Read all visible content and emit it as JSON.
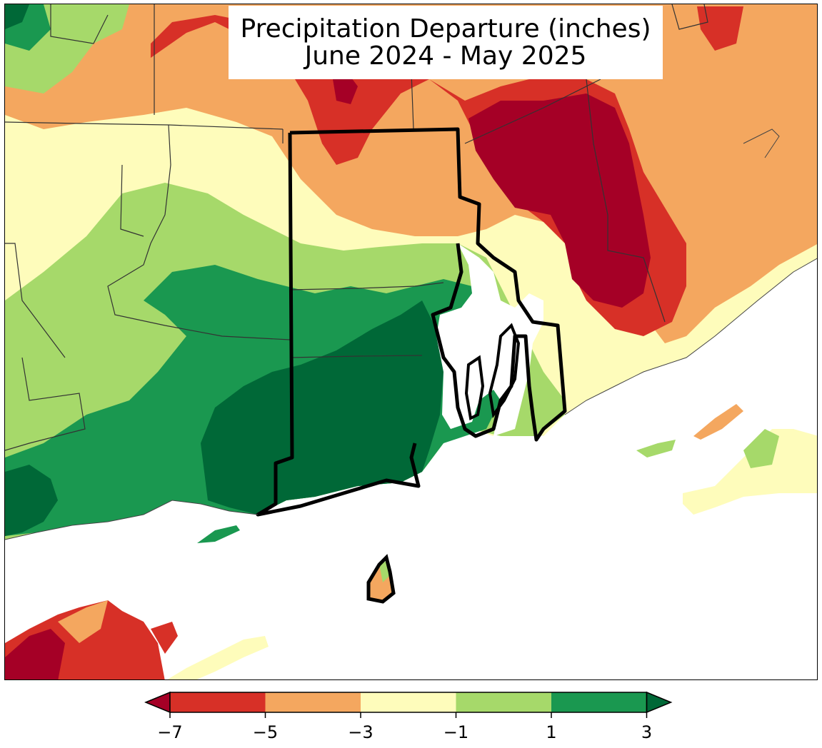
{
  "title": {
    "line1": "Precipitation Departure (inches)",
    "line2": "June 2024 - May 2025"
  },
  "colorbar": {
    "ticks": [
      "−7",
      "−5",
      "−3",
      "−1",
      "1",
      "3"
    ],
    "bins": [
      {
        "range": "below -7",
        "color": "#a50026"
      },
      {
        "range": "-7 to -5",
        "color": "#d73027"
      },
      {
        "range": "-5 to -3",
        "color": "#f4a75f"
      },
      {
        "range": "-3 to -1",
        "color": "#fefcbb"
      },
      {
        "range": "-1 to 1",
        "color": "#a6d96a"
      },
      {
        "range": "1 to 3",
        "color": "#1a9850"
      },
      {
        "range": "above 3",
        "color": "#006837"
      }
    ],
    "extend": "both"
  },
  "map": {
    "region": "Rhode Island and surrounding southern New England",
    "ocean_color": "#ffffff",
    "highlighted_state_border_color": "#000000"
  }
}
